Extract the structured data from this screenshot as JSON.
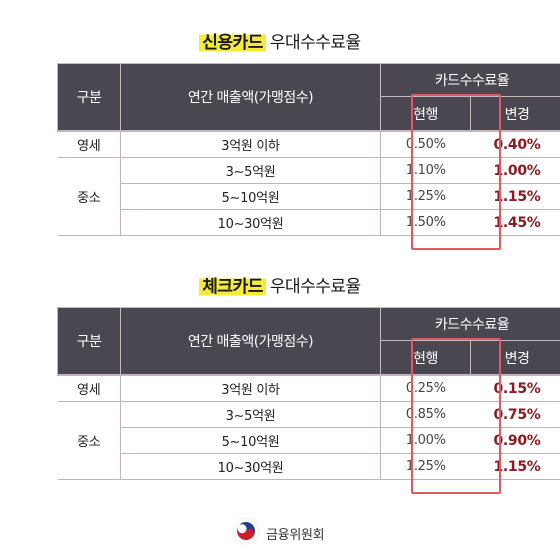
{
  "credit": {
    "title_highlight": "신용카드",
    "title_rest": "우대수수료율",
    "headers": {
      "category": "구분",
      "sales": "연간 매출액(가맹점수)",
      "fee": "카드수수료율",
      "current": "현행",
      "changed": "변경"
    },
    "rows": [
      {
        "category": "영세",
        "range": "3억원 이하",
        "current": "0.50%",
        "changed": "0.40%"
      },
      {
        "category": "중소",
        "range": "3∼5억원",
        "current": "1.10%",
        "changed": "1.00%"
      },
      {
        "range": "5∼10억원",
        "current": "1.25%",
        "changed": "1.15%"
      },
      {
        "range": "10∼30억원",
        "current": "1.50%",
        "changed": "1.45%"
      }
    ]
  },
  "check": {
    "title_highlight": "체크카드",
    "title_rest": "우대수수료율",
    "headers": {
      "category": "구분",
      "sales": "연간 매출액(가맹점수)",
      "fee": "카드수수료율",
      "current": "현행",
      "changed": "변경"
    },
    "rows": [
      {
        "category": "영세",
        "range": "3억원 이하",
        "current": "0.25%",
        "changed": "0.15%"
      },
      {
        "category": "중소",
        "range": "3∼5억원",
        "current": "0.85%",
        "changed": "0.75%"
      },
      {
        "range": "5∼10억원",
        "current": "1.00%",
        "changed": "0.90%"
      },
      {
        "range": "10∼30억원",
        "current": "1.25%",
        "changed": "1.15%"
      }
    ]
  },
  "footer": {
    "logo_icon": "taegeuk-emblem-icon",
    "org_name": "금융위원회"
  },
  "colors": {
    "header_bg": "#4a4750",
    "highlight": "#f4ea3a",
    "changed_text": "#8b1a22",
    "frame": "#e05a64"
  }
}
